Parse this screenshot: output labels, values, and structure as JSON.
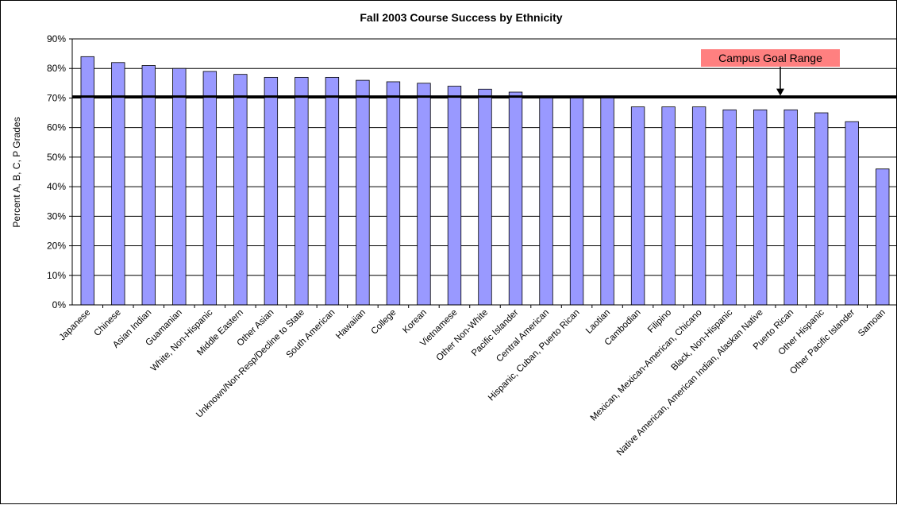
{
  "chart_data": {
    "type": "bar",
    "title": "Fall 2003 Course Success by Ethnicity",
    "ylabel": "Percent A, B, C, P Grades",
    "xlabel": "",
    "ylim": [
      0,
      90
    ],
    "ytick_step": 10,
    "ytick_labels": [
      "0%",
      "10%",
      "20%",
      "30%",
      "40%",
      "50%",
      "60%",
      "70%",
      "80%",
      "90%"
    ],
    "grid": true,
    "bar_color": "#9999ff",
    "categories": [
      "Japanese",
      "Chinese",
      "Asian Indian",
      "Guamanian",
      "White, Non-Hispanic",
      "Middle Eastern",
      "Other Asian",
      "Unknown/Non-Resp/Decline to State",
      "South American",
      "Hawaiian",
      "College",
      "Korean",
      "Vietnamese",
      "Other Non-White",
      "Pacific Islander",
      "Central American",
      "Hispanic, Cuban, Puerto Rican",
      "Laotian",
      "Cambodian",
      "Filipino",
      "Mexican, Mexican-American, Chicano",
      "Black, Non-Hispanic",
      "Native American, American Indian, Alaskan Native",
      "Puerto Rican",
      "Other Hispanic",
      "Other Pacific Islander",
      "Samoan"
    ],
    "values": [
      84,
      82,
      81,
      80,
      79,
      78,
      77,
      77,
      77,
      76,
      75.5,
      75,
      74,
      73,
      72,
      70,
      70,
      70,
      67,
      67,
      67,
      66,
      66,
      66,
      65,
      62,
      46
    ],
    "reference_line": {
      "value": 70.5,
      "color": "#000000"
    },
    "annotation": {
      "text": "Campus Goal Range",
      "background": "#ff8080"
    }
  }
}
